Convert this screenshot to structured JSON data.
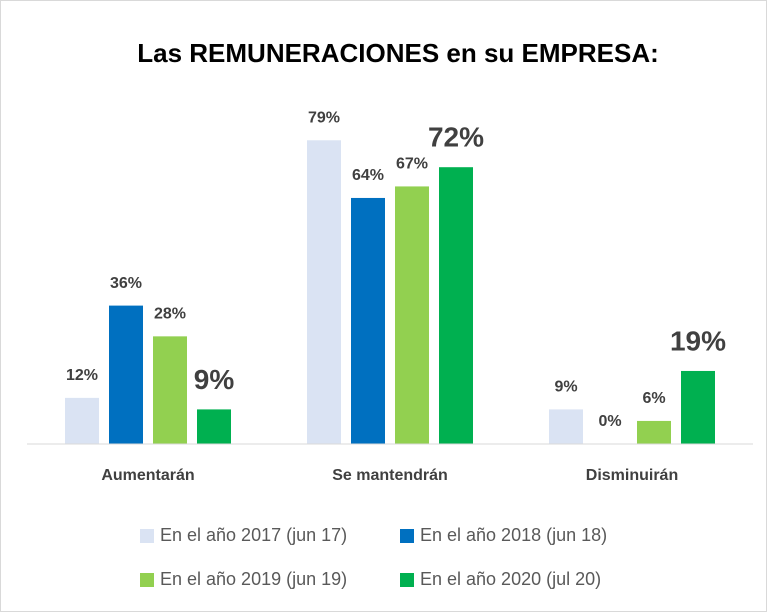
{
  "chart_data": {
    "type": "bar",
    "title": "Las REMUNERACIONES en su EMPRESA:",
    "categories": [
      "Aumentarán",
      "Se mantendrán",
      "Disminuirán"
    ],
    "series": [
      {
        "name": "En el año 2017 (jun 17)",
        "color": "#dae3f3",
        "values": [
          12,
          79,
          9
        ],
        "value_labels": [
          "12%",
          "79%",
          "9%"
        ]
      },
      {
        "name": "En el año 2018 (jun 18)",
        "color": "#0070c0",
        "values": [
          36,
          64,
          0
        ],
        "value_labels": [
          "36%",
          "64%",
          "0%"
        ]
      },
      {
        "name": "En el año 2019 (jun 19)",
        "color": "#92d050",
        "values": [
          28,
          67,
          6
        ],
        "value_labels": [
          "28%",
          "67%",
          "6%"
        ]
      },
      {
        "name": "En el año 2020 (jul 20)",
        "color": "#00b050",
        "values": [
          9,
          72,
          19
        ],
        "value_labels": [
          "9%",
          "72%",
          "19%"
        ]
      }
    ],
    "ylim": [
      0,
      90
    ]
  }
}
